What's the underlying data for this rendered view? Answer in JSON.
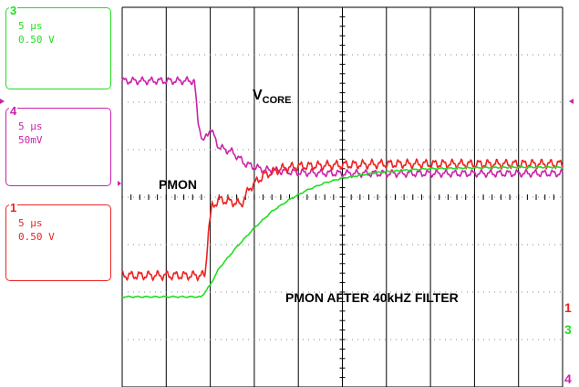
{
  "channels": [
    {
      "num": "3",
      "timebase": "5 µs",
      "scale": "0.50 V",
      "color": "#22dd22"
    },
    {
      "num": "4",
      "timebase": "5 µs",
      "scale": "50mV",
      "color": "#cc22aa"
    },
    {
      "num": "1",
      "timebase": "5 µs",
      "scale": "0.50 V",
      "color": "#ee2222"
    }
  ],
  "chart_data": {
    "type": "line",
    "x_units": "µs",
    "x_range": [
      0,
      50
    ],
    "grid": true,
    "annotations": [
      {
        "text": "V",
        "sub": "CORE"
      },
      {
        "text": "PMON"
      },
      {
        "text": "PMON AFTER 40kHZ FILTER"
      }
    ],
    "series": [
      {
        "channel": "4",
        "color": "#cc22aa",
        "x": [
          0,
          8.2,
          8.6,
          9.2,
          10,
          11,
          12.5,
          14,
          16,
          20,
          25,
          30,
          40,
          50
        ],
        "y": [
          2.45,
          2.45,
          1.6,
          1.15,
          1.45,
          1.05,
          0.95,
          0.7,
          0.58,
          0.52,
          0.5,
          0.5,
          0.5,
          0.5
        ],
        "ripple": 0.08
      },
      {
        "channel": "1",
        "color": "#ee2222",
        "x": [
          0,
          9.4,
          9.8,
          10.2,
          11,
          12.5,
          13.5,
          14.5,
          16,
          18,
          20,
          25,
          30,
          40,
          50
        ],
        "y": [
          -1.65,
          -1.65,
          -0.7,
          -0.2,
          -0.05,
          -0.1,
          -0.15,
          0.2,
          0.45,
          0.6,
          0.65,
          0.68,
          0.7,
          0.7,
          0.7
        ],
        "ripple": 0.1
      },
      {
        "channel": "3",
        "color": "#22dd22",
        "x": [
          0,
          9,
          10,
          11,
          13,
          15,
          17,
          19,
          21,
          23,
          25,
          27,
          29,
          31,
          33,
          35,
          40,
          45,
          50
        ],
        "y": [
          -2.1,
          -2.1,
          -1.85,
          -1.5,
          -1.05,
          -0.65,
          -0.3,
          -0.05,
          0.15,
          0.3,
          0.4,
          0.46,
          0.52,
          0.55,
          0.58,
          0.6,
          0.62,
          0.63,
          0.63
        ],
        "ripple": 0.015
      }
    ]
  }
}
